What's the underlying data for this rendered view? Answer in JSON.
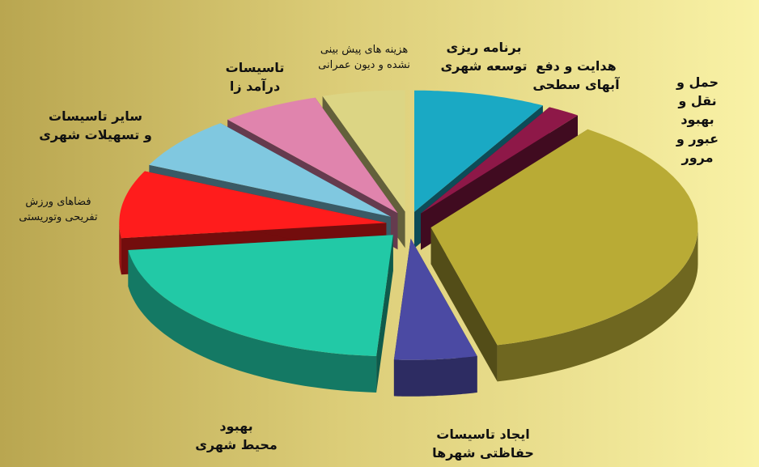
{
  "chart_data": {
    "type": "pie3d",
    "categories": [
      "برنامه ریزی\nتوسعه شهری",
      "هدایت و دفع\nآبهای سطحی",
      "حمل و نقل و\nبهبود عبور و مرور",
      "ایجاد تاسیسات\nحفاظتی شهرها",
      "بهبود\nمحیط شهری",
      "فضاهای ورزش\nتفریحی وتوریستی",
      "سایر تاسیسات\nو تسهیلات شهری",
      "تاسیسات\nدرآمد زا",
      "هزینه های پیش بینی\nنشده و دیون عمرانی"
    ],
    "values": [
      8,
      2,
      36,
      5,
      22,
      9,
      7,
      6,
      5
    ],
    "colors": [
      "#1aa9c4",
      "#8e1848",
      "#b9ab35",
      "#4b4aa3",
      "#22c9a6",
      "#ff1c1c",
      "#80c8e0",
      "#e084ad",
      "#dcd584"
    ]
  }
}
